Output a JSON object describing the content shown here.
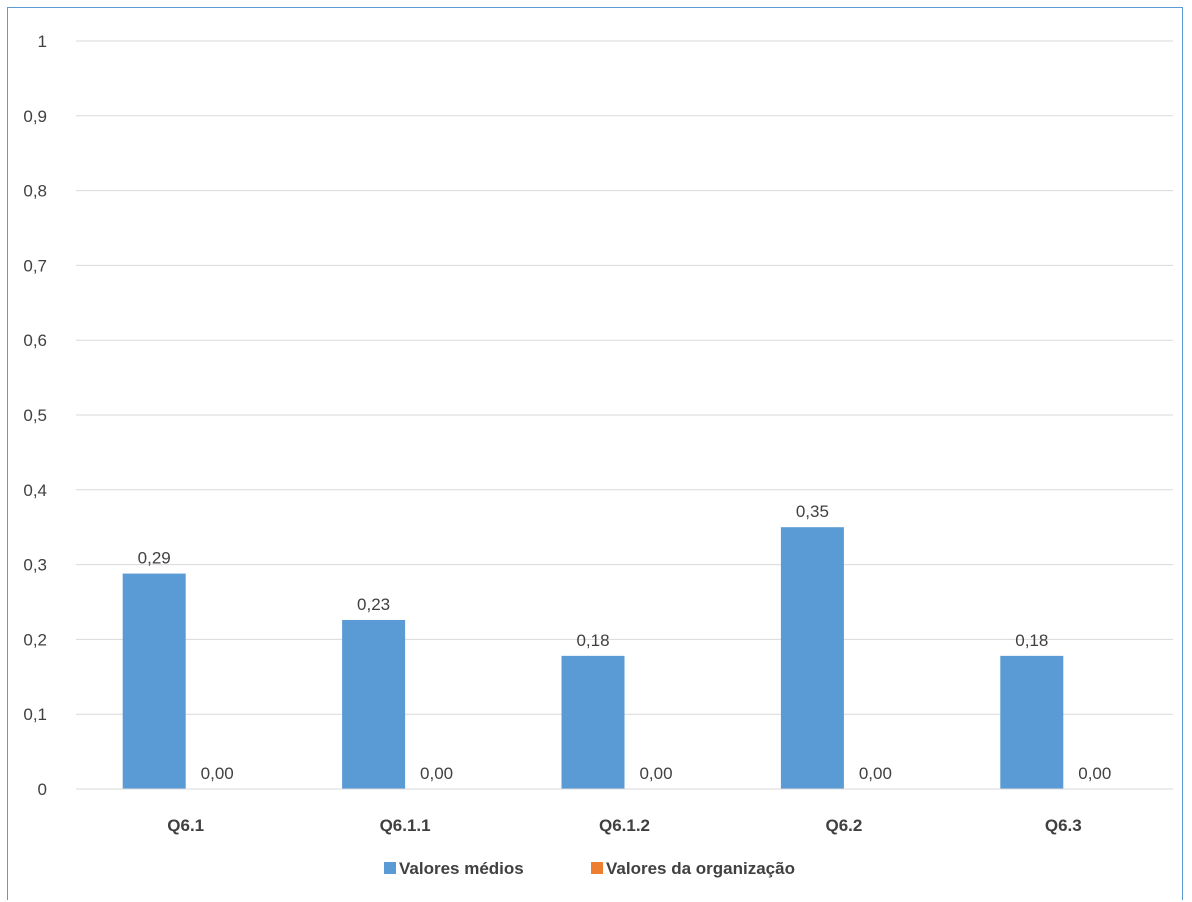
{
  "chart_data": {
    "type": "bar",
    "categories": [
      "Q6.1",
      "Q6.1.1",
      "Q6.1.2",
      "Q6.2",
      "Q6.3"
    ],
    "series": [
      {
        "name": "Valores médios",
        "color": "#5b9bd5",
        "values": [
          0.288,
          0.226,
          0.178,
          0.35,
          0.178
        ],
        "labels": [
          "0,29",
          "0,23",
          "0,18",
          "0,35",
          "0,18"
        ]
      },
      {
        "name": "Valores da organização",
        "color": "#ed7d31",
        "values": [
          0,
          0,
          0,
          0,
          0
        ],
        "labels": [
          "0,00",
          "0,00",
          "0,00",
          "0,00",
          "0,00"
        ]
      }
    ],
    "ylim": [
      0,
      1
    ],
    "yticks": [
      0,
      0.1,
      0.2,
      0.3,
      0.4,
      0.5,
      0.6,
      0.7,
      0.8,
      0.9,
      1
    ],
    "ytick_labels": [
      "0",
      "0,1",
      "0,2",
      "0,3",
      "0,4",
      "0,5",
      "0,6",
      "0,7",
      "0,8",
      "0,9",
      "1"
    ],
    "grid": true,
    "legend": "bottom",
    "title": "",
    "xlabel": "",
    "ylabel": ""
  }
}
